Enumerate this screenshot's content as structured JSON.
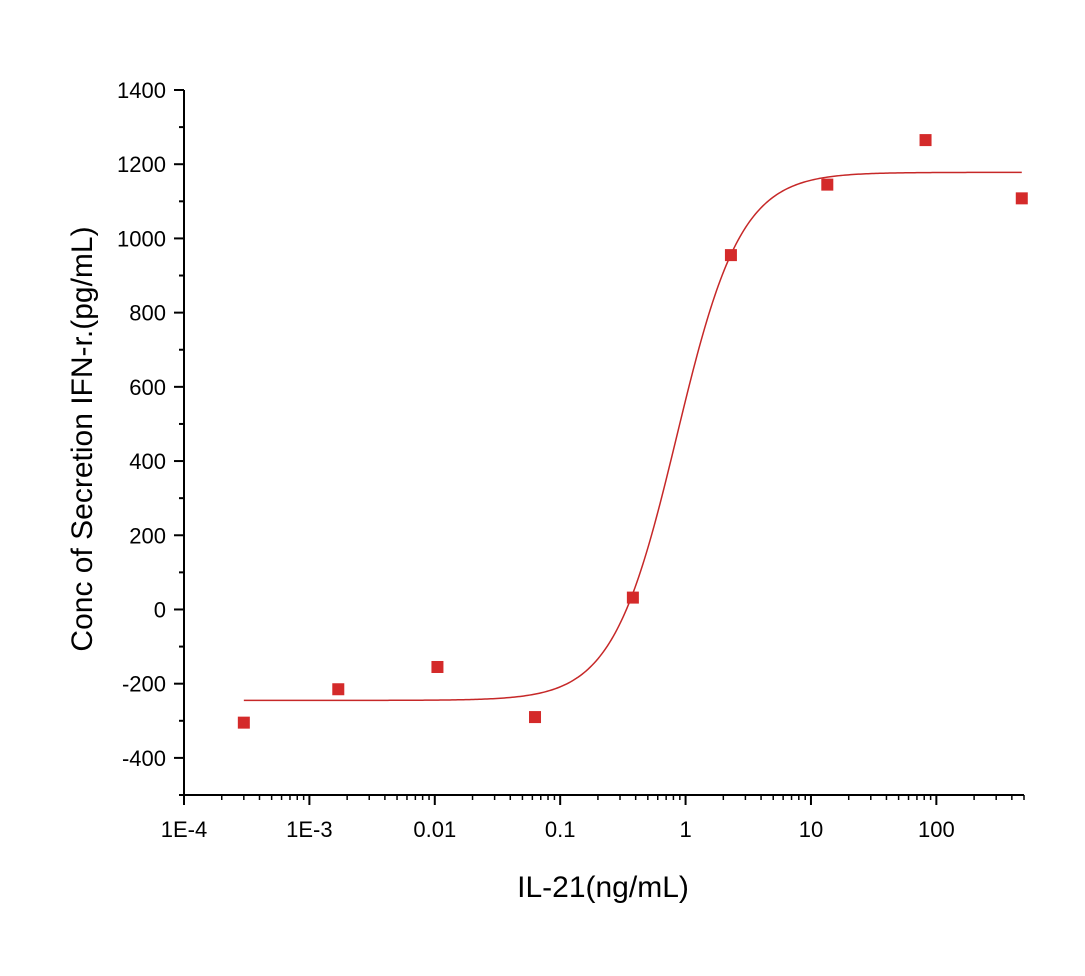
{
  "chart_data": {
    "type": "scatter",
    "title": "",
    "xlabel": "IL-21(ng/mL)",
    "ylabel": "Conc of Secretion IFN-r.(pg/mL)",
    "x_scale": "log",
    "xlim": [
      0.0001,
      500
    ],
    "ylim": [
      -500,
      1400
    ],
    "x_ticks": [
      {
        "value": 0.0001,
        "label": "1E-4"
      },
      {
        "value": 0.001,
        "label": "1E-3"
      },
      {
        "value": 0.01,
        "label": "0.01"
      },
      {
        "value": 0.1,
        "label": "0.1"
      },
      {
        "value": 1,
        "label": "1"
      },
      {
        "value": 10,
        "label": "10"
      },
      {
        "value": 100,
        "label": "100"
      }
    ],
    "y_ticks": [
      {
        "value": 1400,
        "label": "1400"
      },
      {
        "value": 1200,
        "label": "1200"
      },
      {
        "value": 1000,
        "label": "1000"
      },
      {
        "value": 800,
        "label": "800"
      },
      {
        "value": 600,
        "label": "600"
      },
      {
        "value": 400,
        "label": "400"
      },
      {
        "value": 200,
        "label": "200"
      },
      {
        "value": 0,
        "label": "0"
      },
      {
        "value": -200,
        "label": "-200"
      },
      {
        "value": -400,
        "label": "-400"
      }
    ],
    "grid": false,
    "series": [
      {
        "marker": "square",
        "color": "#d42a2a",
        "x": [
          0.0003,
          0.0017,
          0.0105,
          0.063,
          0.38,
          2.3,
          13.5,
          82,
          480
        ],
        "y": [
          -305,
          -215,
          -155,
          -290,
          32,
          955,
          1145,
          1265,
          1108
        ]
      }
    ],
    "fit_curve": {
      "model": "4PL",
      "color": "#c62828",
      "bottom": -245,
      "top": 1178,
      "ec50": 0.85,
      "hill": 1.7,
      "x_range": [
        0.0003,
        480
      ]
    }
  }
}
